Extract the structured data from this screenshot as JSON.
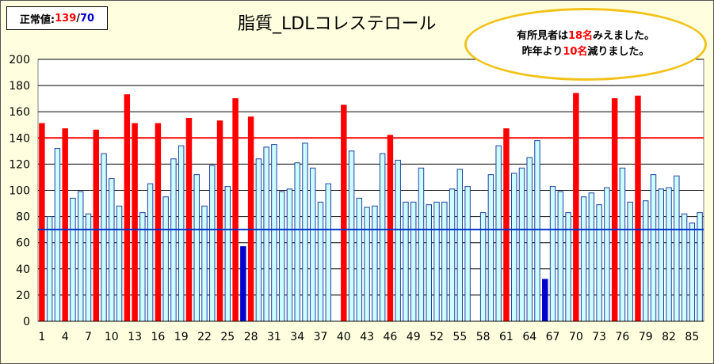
{
  "normal_box": {
    "label": "正常値:",
    "upper": "139",
    "sep": "/",
    "lower": "70"
  },
  "title": "脂質_LDLコレステロール",
  "callout": {
    "line1_pre": "有所見者は",
    "line1_num": "18名",
    "line1_post": "みえました。",
    "line2_pre": "昨年より",
    "line2_num": "10名",
    "line2_post": "減りました。"
  },
  "colors": {
    "normal": "#ccffff",
    "high": "#ff0000",
    "low": "#0000cc",
    "upper_line": "#ff0000",
    "lower_line": "#0033cc",
    "plot_bg": "#ffffff"
  },
  "chart_data": {
    "type": "bar",
    "ylim": [
      0,
      200
    ],
    "yticks": [
      0,
      20,
      40,
      60,
      80,
      100,
      120,
      140,
      160,
      180,
      200
    ],
    "xticks": [
      1,
      4,
      7,
      10,
      13,
      16,
      19,
      22,
      25,
      28,
      31,
      34,
      37,
      40,
      43,
      46,
      49,
      52,
      55,
      58,
      61,
      64,
      67,
      70,
      73,
      76,
      79,
      82,
      85
    ],
    "x": [
      1,
      2,
      3,
      4,
      5,
      6,
      7,
      8,
      9,
      10,
      11,
      12,
      13,
      14,
      15,
      16,
      17,
      18,
      19,
      20,
      21,
      22,
      23,
      24,
      25,
      26,
      27,
      28,
      29,
      30,
      31,
      32,
      33,
      34,
      35,
      36,
      37,
      38,
      39,
      40,
      41,
      42,
      43,
      44,
      45,
      46,
      47,
      48,
      49,
      50,
      51,
      52,
      53,
      54,
      55,
      56,
      57,
      58,
      59,
      60,
      61,
      62,
      63,
      64,
      65,
      66,
      67,
      68,
      69,
      70,
      71,
      72,
      73,
      74,
      75,
      76,
      77,
      78,
      79,
      80,
      81,
      82,
      83,
      84,
      85,
      86
    ],
    "values": [
      151,
      80,
      132,
      147,
      94,
      99,
      82,
      146,
      128,
      109,
      88,
      173,
      151,
      83,
      105,
      151,
      95,
      124,
      134,
      155,
      112,
      88,
      119,
      153,
      103,
      170,
      57,
      156,
      124,
      133,
      135,
      99,
      101,
      121,
      136,
      117,
      91,
      105,
      0,
      165,
      130,
      94,
      87,
      88,
      128,
      142,
      123,
      91,
      91,
      117,
      89,
      91,
      91,
      101,
      116,
      103,
      0,
      83,
      112,
      134,
      147,
      113,
      117,
      125,
      138,
      32,
      103,
      99,
      83,
      174,
      95,
      98,
      89,
      102,
      170,
      117,
      91,
      172,
      92,
      112,
      101,
      102,
      111,
      82,
      75,
      83
    ],
    "upper_limit": 140,
    "lower_limit": 70
  }
}
